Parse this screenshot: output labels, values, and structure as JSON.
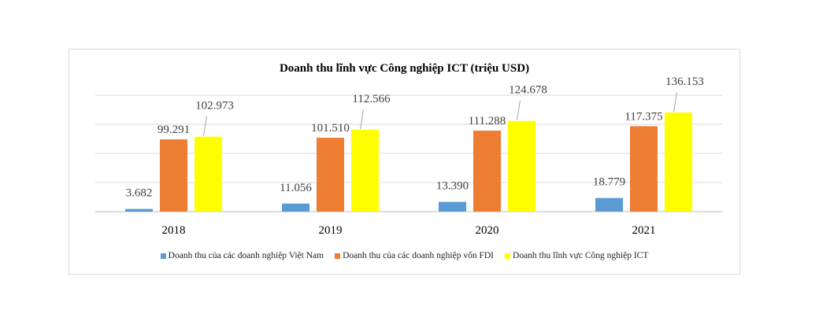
{
  "chart_data": {
    "type": "bar",
    "title": "Doanh thu lĩnh vực Công nghiệp ICT (triệu USD)",
    "categories": [
      "2018",
      "2019",
      "2020",
      "2021"
    ],
    "series": [
      {
        "name": "Doanh thu của các doanh nghiệp Việt Nam",
        "color": "#5b9bd5",
        "values": [
          3682,
          11056,
          13390,
          18779
        ],
        "labels": [
          "3.682",
          "11.056",
          "13.390",
          "18.779"
        ]
      },
      {
        "name": "Doanh thu của các doanh nghiệp vốn FDI",
        "color": "#ed7d31",
        "values": [
          99291,
          101510,
          111288,
          117375
        ],
        "labels": [
          "99.291",
          "101.510",
          "111.288",
          "117.375"
        ]
      },
      {
        "name": "Doanh thu lĩnh vực Công nghiệp ICT",
        "color": "#ffff00",
        "values": [
          102973,
          112566,
          124678,
          136153
        ],
        "labels": [
          "102.973",
          "112.566",
          "124.678",
          "136.153"
        ]
      }
    ],
    "ylim": [
      0,
      160000
    ],
    "grid": true,
    "legend": "bottom"
  }
}
